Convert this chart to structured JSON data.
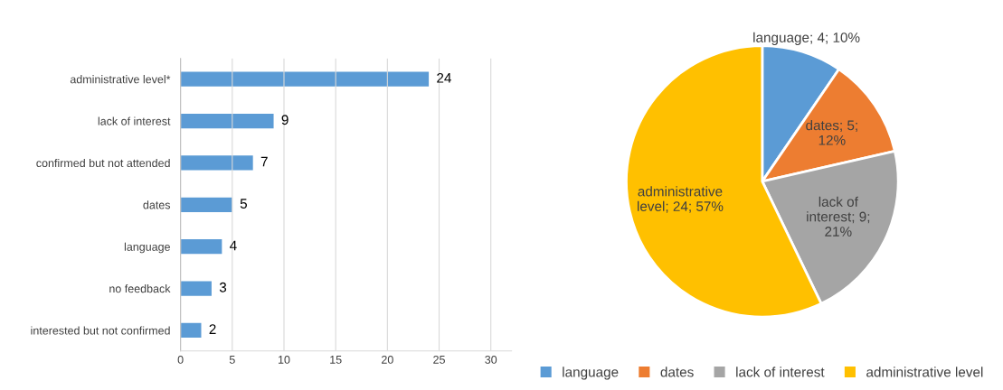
{
  "chart_data": [
    {
      "type": "bar",
      "orientation": "horizontal",
      "categories": [
        "administrative level*",
        "lack of interest",
        "confirmed but not attended",
        "dates",
        "language",
        "no feedback",
        "interested but not confirmed"
      ],
      "series": [
        {
          "color": "#5b9bd5",
          "values": [
            24,
            9,
            7,
            5,
            4,
            3,
            2
          ]
        }
      ],
      "xlim": [
        0,
        32
      ],
      "xticks": [
        0,
        5,
        10,
        15,
        20,
        25,
        30
      ],
      "data_labels": true,
      "grid": true,
      "legend": false
    },
    {
      "type": "pie",
      "categories": [
        "language",
        "dates",
        "lack of interest",
        "administrative level"
      ],
      "values": [
        4,
        5,
        9,
        24
      ],
      "colors": [
        "#5b9bd5",
        "#ed7d31",
        "#a5a5a5",
        "#ffc000"
      ],
      "value_labels": [
        "language; 4; 10%",
        "dates; 5;\n12%",
        "lack of\ninterest; 9;\n21%",
        "administrative\nlevel; 24; 57%"
      ],
      "legend": "bottom"
    }
  ]
}
